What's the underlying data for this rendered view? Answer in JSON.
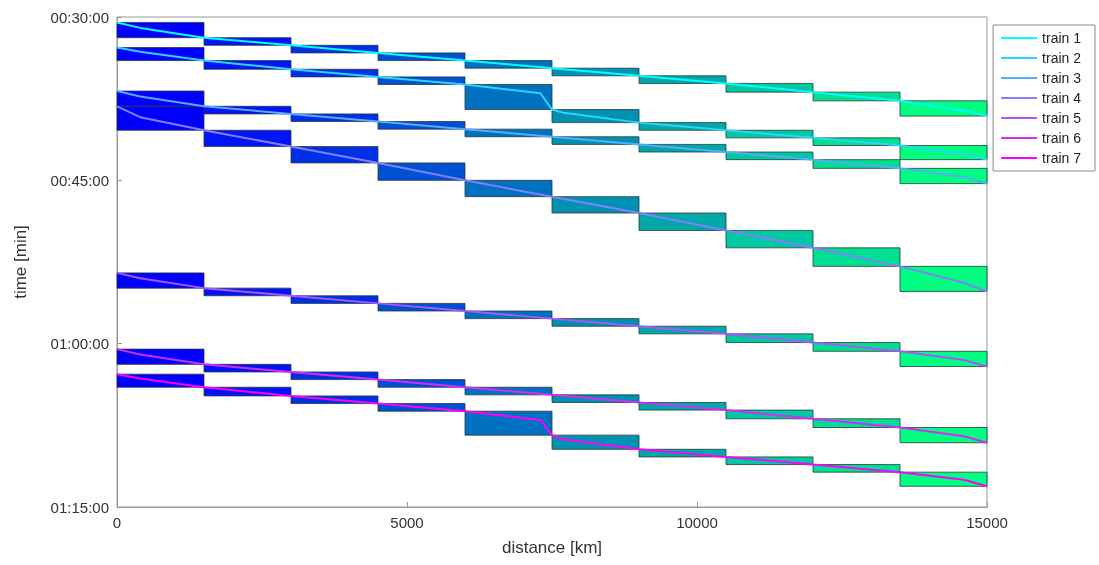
{
  "chart_data": {
    "type": "bar",
    "xlabel": "distance [km]",
    "ylabel": "time [min]",
    "x": [
      750,
      2250,
      3750,
      5250,
      6750,
      8250,
      9750,
      11250,
      12750,
      14250
    ],
    "xlim": [
      0,
      15000
    ],
    "xticks": [
      0,
      5000,
      10000,
      15000
    ],
    "ylim": [
      75,
      30
    ],
    "yticks": [
      {
        "value": 30,
        "label": "00:30:00"
      },
      {
        "value": 45,
        "label": "00:45:00"
      },
      {
        "value": 60,
        "label": "01:00:00"
      },
      {
        "value": 75,
        "label": "01:15:00"
      }
    ],
    "grid": false,
    "legend": "right",
    "marker": "none",
    "series": [
      {
        "base": [
          30.5,
          31.9,
          32.6,
          33.3,
          34.0,
          34.7,
          35.4,
          36.1,
          36.9,
          37.7
        ],
        "values": [
          1.4,
          0.7,
          0.7,
          0.7,
          0.7,
          0.7,
          0.7,
          0.8,
          0.8,
          1.4
        ],
        "colors": [
          "#0000ff",
          "#0014f4",
          "#0030e6",
          "#0050d4",
          "#0070c0",
          "#0090b0",
          "#00a8a8",
          "#00c8a0",
          "#00e090",
          "#00ff80"
        ]
      },
      {
        "base": [
          32.8,
          34.0,
          34.8,
          35.5,
          36.2,
          38.5,
          39.7,
          40.4,
          41.1,
          41.8
        ],
        "values": [
          1.2,
          0.8,
          0.7,
          0.7,
          2.3,
          1.2,
          0.7,
          0.7,
          0.7,
          1.3
        ],
        "colors": [
          "#0000ff",
          "#0014f4",
          "#0030e6",
          "#0050d4",
          "#0070c0",
          "#0090b0",
          "#00a8a8",
          "#00c8a0",
          "#00e090",
          "#00ff80"
        ]
      },
      {
        "base": [
          36.8,
          38.2,
          38.9,
          39.6,
          40.3,
          41.0,
          41.7,
          42.4,
          43.1,
          43.9
        ],
        "values": [
          1.4,
          0.7,
          0.7,
          0.7,
          0.7,
          0.7,
          0.7,
          0.7,
          0.8,
          1.4
        ],
        "colors": [
          "#0000ff",
          "#0014f4",
          "#0030e6",
          "#0050d4",
          "#0070c0",
          "#0090b0",
          "#00a8a8",
          "#00c8a0",
          "#00e090",
          "#00ff80"
        ]
      },
      {
        "base": [
          38.2,
          40.4,
          41.9,
          43.4,
          45.0,
          46.5,
          48.0,
          49.6,
          51.2,
          52.9
        ],
        "values": [
          2.2,
          1.5,
          1.5,
          1.6,
          1.5,
          1.5,
          1.6,
          1.6,
          1.7,
          2.3
        ],
        "colors": [
          "#0000ff",
          "#0014f4",
          "#0030e6",
          "#0050d4",
          "#0070c0",
          "#0090b0",
          "#00a8a8",
          "#00c8a0",
          "#00e090",
          "#00ff80"
        ]
      },
      {
        "base": [
          53.5,
          54.9,
          55.6,
          56.3,
          57.0,
          57.7,
          58.4,
          59.1,
          59.9,
          60.7
        ],
        "values": [
          1.4,
          0.7,
          0.7,
          0.7,
          0.7,
          0.7,
          0.7,
          0.8,
          0.8,
          1.4
        ],
        "colors": [
          "#0000ff",
          "#0014f4",
          "#0030e6",
          "#0050d4",
          "#0070c0",
          "#0090b0",
          "#00a8a8",
          "#00c8a0",
          "#00e090",
          "#00ff80"
        ]
      },
      {
        "base": [
          60.5,
          61.9,
          62.6,
          63.3,
          64.0,
          64.7,
          65.4,
          66.1,
          66.9,
          67.7
        ],
        "values": [
          1.4,
          0.7,
          0.7,
          0.7,
          0.7,
          0.7,
          0.7,
          0.8,
          0.8,
          1.4
        ],
        "colors": [
          "#0000ff",
          "#0014f4",
          "#0030e6",
          "#0050d4",
          "#0070c0",
          "#0090b0",
          "#00a8a8",
          "#00c8a0",
          "#00e090",
          "#00ff80"
        ]
      },
      {
        "base": [
          62.8,
          64.0,
          64.8,
          65.5,
          66.2,
          68.4,
          69.7,
          70.4,
          71.1,
          71.8
        ],
        "values": [
          1.2,
          0.8,
          0.7,
          0.7,
          2.2,
          1.3,
          0.7,
          0.7,
          0.7,
          1.3
        ],
        "colors": [
          "#0000ff",
          "#0014f4",
          "#0030e6",
          "#0050d4",
          "#0070c0",
          "#0090b0",
          "#00a8a8",
          "#00c8a0",
          "#00e090",
          "#00ff80"
        ]
      },
      {
        "type": "line",
        "name": "train 1",
        "color": "#00ffff",
        "x": [
          0,
          400,
          1500,
          3000,
          4500,
          6000,
          7500,
          9000,
          10500,
          12000,
          13500,
          14600,
          15000
        ],
        "values": [
          30.5,
          31.0,
          31.9,
          32.6,
          33.3,
          34.0,
          34.7,
          35.4,
          36.1,
          36.9,
          37.7,
          38.6,
          39.1
        ]
      },
      {
        "type": "line",
        "name": "train 2",
        "color": "#2ad5ff",
        "x": [
          0,
          400,
          1500,
          3000,
          4500,
          6000,
          7300,
          7500,
          7700,
          9000,
          10500,
          12000,
          13500,
          14600,
          15000
        ],
        "values": [
          32.8,
          33.2,
          34.0,
          34.8,
          35.5,
          36.2,
          37.0,
          38.5,
          38.8,
          39.7,
          40.4,
          41.1,
          41.8,
          42.6,
          43.1
        ]
      },
      {
        "type": "line",
        "name": "train 3",
        "color": "#55aaff",
        "x": [
          0,
          400,
          1500,
          3000,
          4500,
          6000,
          7500,
          9000,
          10500,
          12000,
          13500,
          14600,
          15000
        ],
        "values": [
          36.8,
          37.3,
          38.2,
          38.9,
          39.6,
          40.3,
          41.0,
          41.7,
          42.4,
          43.1,
          43.9,
          44.7,
          45.3
        ]
      },
      {
        "type": "line",
        "name": "train 4",
        "color": "#8080ff",
        "x": [
          0,
          400,
          1500,
          3000,
          4500,
          6000,
          7500,
          9000,
          10500,
          12000,
          13500,
          14600,
          15000
        ],
        "values": [
          38.2,
          39.2,
          40.4,
          41.9,
          43.4,
          45.0,
          46.5,
          48.0,
          49.6,
          51.2,
          52.9,
          54.4,
          55.2
        ]
      },
      {
        "type": "line",
        "name": "train 5",
        "color": "#aa55ff",
        "x": [
          0,
          400,
          1500,
          3000,
          4500,
          6000,
          7500,
          9000,
          10500,
          12000,
          13500,
          14600,
          15000
        ],
        "values": [
          53.5,
          54.0,
          54.9,
          55.6,
          56.3,
          57.0,
          57.7,
          58.4,
          59.1,
          59.9,
          60.7,
          61.5,
          62.1
        ]
      },
      {
        "type": "line",
        "name": "train 6",
        "color": "#d52aff",
        "x": [
          0,
          400,
          1500,
          3000,
          4500,
          6000,
          7500,
          9000,
          10500,
          12000,
          13500,
          14600,
          15000
        ],
        "values": [
          60.5,
          61.0,
          61.9,
          62.6,
          63.3,
          64.0,
          64.7,
          65.4,
          66.1,
          66.9,
          67.7,
          68.5,
          69.1
        ]
      },
      {
        "type": "line",
        "name": "train 7",
        "color": "#ff00ff",
        "x": [
          0,
          400,
          1500,
          3000,
          4500,
          6000,
          7300,
          7500,
          7700,
          9000,
          10500,
          12000,
          13500,
          14600,
          15000
        ],
        "values": [
          62.8,
          63.2,
          64.0,
          64.8,
          65.5,
          66.2,
          67.0,
          68.4,
          68.8,
          69.7,
          70.4,
          71.1,
          71.8,
          72.5,
          73.1
        ]
      }
    ]
  }
}
